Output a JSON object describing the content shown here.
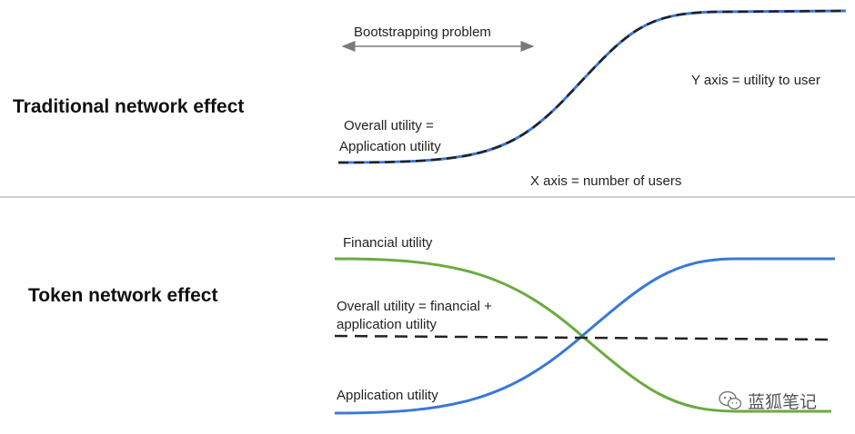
{
  "top_panel": {
    "heading": "Traditional network effect",
    "bootstrapping_label": "Bootstrapping problem",
    "overall_label_line1": "Overall utility =",
    "overall_label_line2": "Application utility",
    "y_axis_note": "Y axis = utility to user",
    "x_axis_note": "X axis = number of users"
  },
  "bottom_panel": {
    "heading": "Token network effect",
    "financial_label": "Financial utility",
    "overall_label_line1": "Overall utility = financial +",
    "overall_label_line2": "application utility",
    "application_label": "Application utility"
  },
  "watermark": {
    "text": "蓝狐笔记",
    "icon": "wechat-icon"
  },
  "colors": {
    "blue_curve": "#3a78d8",
    "green_curve": "#6aab3e",
    "dashed_curve": "#222222",
    "divider": "#bdbdbd",
    "arrow": "#7a7a7a"
  }
}
